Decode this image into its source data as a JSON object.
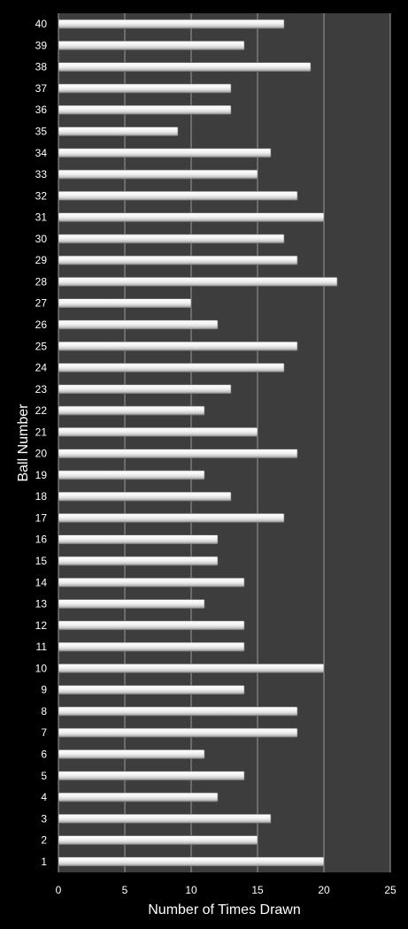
{
  "chart_data": {
    "type": "bar",
    "orientation": "horizontal",
    "xlabel": "Number of Times Drawn",
    "ylabel": "Ball Number",
    "xlim": [
      0,
      25
    ],
    "x_ticks": [
      "0",
      "5",
      "10",
      "15",
      "20",
      "25"
    ],
    "categories": [
      "1",
      "2",
      "3",
      "4",
      "5",
      "6",
      "7",
      "8",
      "9",
      "10",
      "11",
      "12",
      "13",
      "14",
      "15",
      "16",
      "17",
      "18",
      "19",
      "20",
      "21",
      "22",
      "23",
      "24",
      "25",
      "26",
      "27",
      "28",
      "29",
      "30",
      "31",
      "32",
      "33",
      "34",
      "35",
      "36",
      "37",
      "38",
      "39",
      "40"
    ],
    "values": [
      20,
      15,
      16,
      12,
      14,
      11,
      18,
      18,
      14,
      20,
      14,
      14,
      11,
      14,
      12,
      12,
      17,
      13,
      11,
      18,
      15,
      11,
      13,
      17,
      18,
      12,
      10,
      21,
      18,
      17,
      20,
      18,
      15,
      16,
      9,
      13,
      13,
      19,
      14,
      17
    ],
    "grid": true,
    "colors": {
      "page_background": "#000000",
      "plot_background": "#3d3d3d",
      "bar_fill": "#e8e8e8",
      "gridline": "#9a9a9a",
      "text": "#ffffff"
    }
  }
}
